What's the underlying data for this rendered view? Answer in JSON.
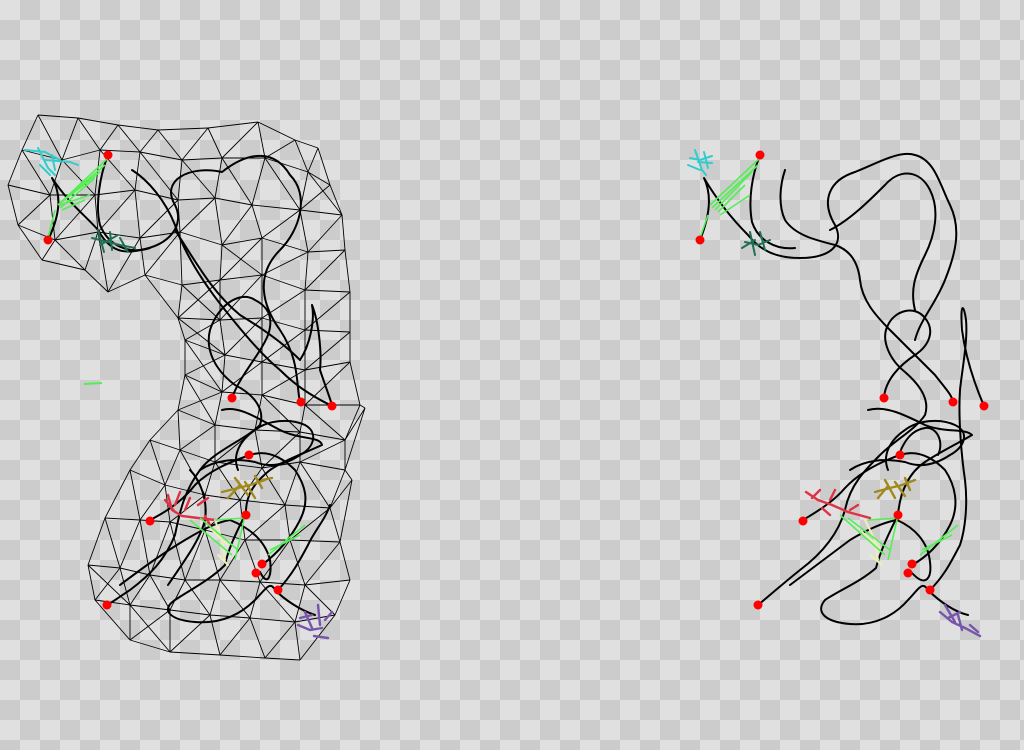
{
  "scene": {
    "background": {
      "pattern": "checkerboard",
      "light_color": "#e0e0e0",
      "dark_color": "#cccccc"
    },
    "colors": {
      "mesh": "#000000",
      "trajectory": "#000000",
      "endpoint": "#ff0000",
      "link": "#55ee55",
      "cyan_structure": "#33cccc",
      "teal_structure": "#1f6f55",
      "red_structure": "#dd3344",
      "olive_structure": "#a08a20",
      "cream_structure": "#eeeebb",
      "purple_structure": "#7755aa"
    },
    "panels": [
      {
        "id": "left-panel",
        "has_mesh": true
      },
      {
        "id": "right-panel",
        "has_mesh": false
      }
    ]
  }
}
